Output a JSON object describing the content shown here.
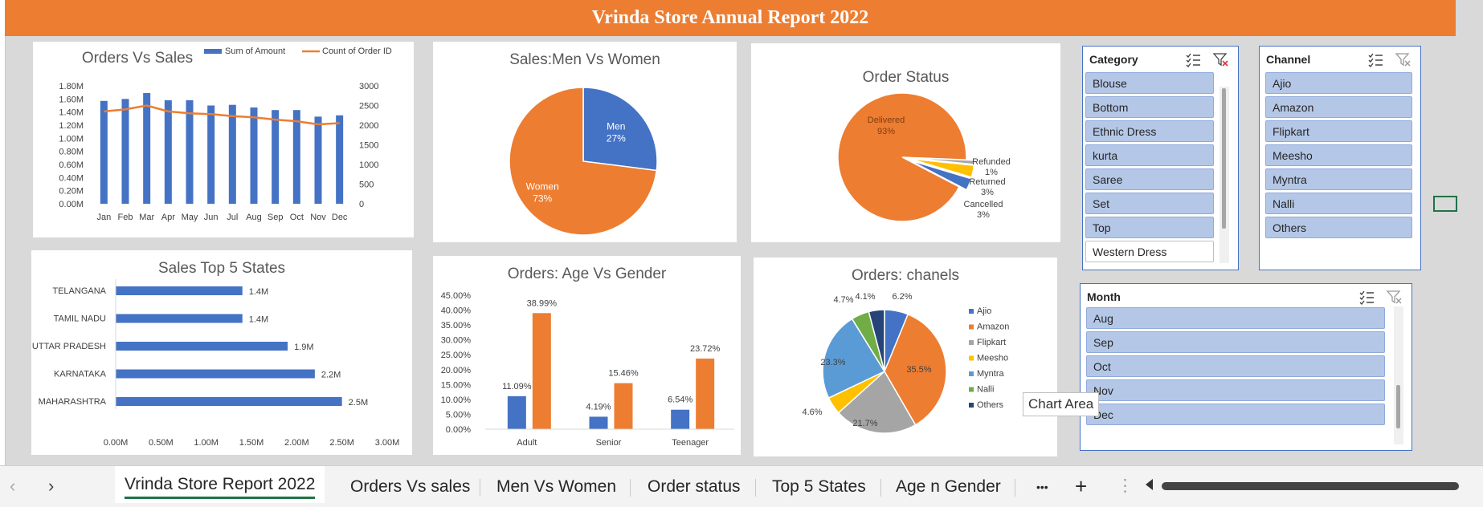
{
  "banner_title": "Vrinda Store Annual Report 2022",
  "colors": {
    "blue": "#4472c4",
    "orange": "#ed7d31",
    "gray": "#a5a5a5",
    "yellow": "#ffc000",
    "lightblue": "#5b9bd5",
    "green": "#70ad47",
    "navy": "#264478"
  },
  "chart_data": [
    {
      "type": "bar",
      "title": "Orders Vs Sales",
      "categories": [
        "Jan",
        "Feb",
        "Mar",
        "Apr",
        "May",
        "Jun",
        "Jul",
        "Aug",
        "Sep",
        "Oct",
        "Nov",
        "Dec"
      ],
      "series": [
        {
          "name": "Sum of Amount",
          "type": "bar",
          "axis": "left",
          "values": [
            1.57,
            1.6,
            1.69,
            1.58,
            1.58,
            1.5,
            1.51,
            1.47,
            1.43,
            1.43,
            1.33,
            1.35
          ]
        },
        {
          "name": "Count of Order ID",
          "type": "line",
          "axis": "right",
          "values": [
            2350,
            2400,
            2500,
            2350,
            2300,
            2280,
            2230,
            2200,
            2140,
            2100,
            2020,
            2050
          ]
        }
      ],
      "left_ticks": [
        "0.00M",
        "0.20M",
        "0.40M",
        "0.60M",
        "0.80M",
        "1.00M",
        "1.20M",
        "1.40M",
        "1.60M",
        "1.80M"
      ],
      "right_ticks": [
        "0",
        "500",
        "1000",
        "1500",
        "2000",
        "2500",
        "3000"
      ],
      "ylim_left": [
        0,
        1.8
      ],
      "ylim_right": [
        0,
        3000
      ],
      "legend": "top-right"
    },
    {
      "type": "pie",
      "title": "Sales:Men Vs Women",
      "slices": [
        {
          "label": "Men",
          "value": 27,
          "text": "27%"
        },
        {
          "label": "Women",
          "value": 73,
          "text": "73%"
        }
      ]
    },
    {
      "type": "pie",
      "title": "Order Status",
      "slices": [
        {
          "label": "Delivered",
          "value": 93,
          "text": "93%"
        },
        {
          "label": "Refunded",
          "value": 1,
          "text": "1%"
        },
        {
          "label": "Returned",
          "value": 3,
          "text": "3%"
        },
        {
          "label": "Cancelled",
          "value": 3,
          "text": "3%"
        }
      ]
    },
    {
      "type": "bar",
      "orientation": "horizontal",
      "title": "Sales Top 5 States",
      "categories": [
        "TELANGANA",
        "TAMIL NADU",
        "UTTAR PRADESH",
        "KARNATAKA",
        "MAHARASHTRA"
      ],
      "values": [
        1.4,
        1.4,
        1.9,
        2.2,
        2.5
      ],
      "labels": [
        "1.4M",
        "1.4M",
        "1.9M",
        "2.2M",
        "2.5M"
      ],
      "x_ticks": [
        "0.00M",
        "0.50M",
        "1.00M",
        "1.50M",
        "2.00M",
        "2.50M",
        "3.00M"
      ],
      "xlim": [
        0,
        3
      ]
    },
    {
      "type": "bar",
      "title": "Orders: Age Vs Gender",
      "categories": [
        "Adult",
        "Senior",
        "Teenager"
      ],
      "series": [
        {
          "values": [
            11.09,
            4.19,
            6.54
          ],
          "labels": [
            "11.09%",
            "4.19%",
            "6.54%"
          ]
        },
        {
          "values": [
            38.99,
            15.46,
            23.72
          ],
          "labels": [
            "38.99%",
            "15.46%",
            "23.72%"
          ]
        }
      ],
      "y_ticks": [
        "0.00%",
        "5.00%",
        "10.00%",
        "15.00%",
        "20.00%",
        "25.00%",
        "30.00%",
        "35.00%",
        "40.00%",
        "45.00%"
      ],
      "ylim": [
        0,
        45
      ]
    },
    {
      "type": "pie",
      "title": "Orders: chanels",
      "slices": [
        {
          "label": "Ajio",
          "value": 6.2,
          "text": "6.2%"
        },
        {
          "label": "Amazon",
          "value": 35.5,
          "text": "35.5%"
        },
        {
          "label": "Flipkart",
          "value": 21.7,
          "text": "21.7%"
        },
        {
          "label": "Meesho",
          "value": 4.6,
          "text": "4.6%"
        },
        {
          "label": "Myntra",
          "value": 23.3,
          "text": "23.3%"
        },
        {
          "label": "Nalli",
          "value": 4.7,
          "text": "4.7%"
        },
        {
          "label": "Others",
          "value": 4.1,
          "text": "4.1%"
        }
      ],
      "legend": "right"
    }
  ],
  "slicers": {
    "category": {
      "title": "Category",
      "items": [
        "Blouse",
        "Bottom",
        "Ethnic Dress",
        "kurta",
        "Saree",
        "Set",
        "Top",
        "Western Dress"
      ]
    },
    "channel": {
      "title": "Channel",
      "items": [
        "Ajio",
        "Amazon",
        "Flipkart",
        "Meesho",
        "Myntra",
        "Nalli",
        "Others"
      ]
    },
    "month": {
      "title": "Month",
      "items": [
        "Aug",
        "Sep",
        "Oct",
        "Nov",
        "Dec"
      ]
    }
  },
  "tooltip": "Chart Area",
  "tabs": [
    "Vrinda Store Report 2022",
    "Orders Vs sales",
    "Men Vs Women",
    "Order status",
    "Top 5 States",
    "Age n Gender"
  ],
  "tab_more": "•••",
  "tab_add": "+"
}
